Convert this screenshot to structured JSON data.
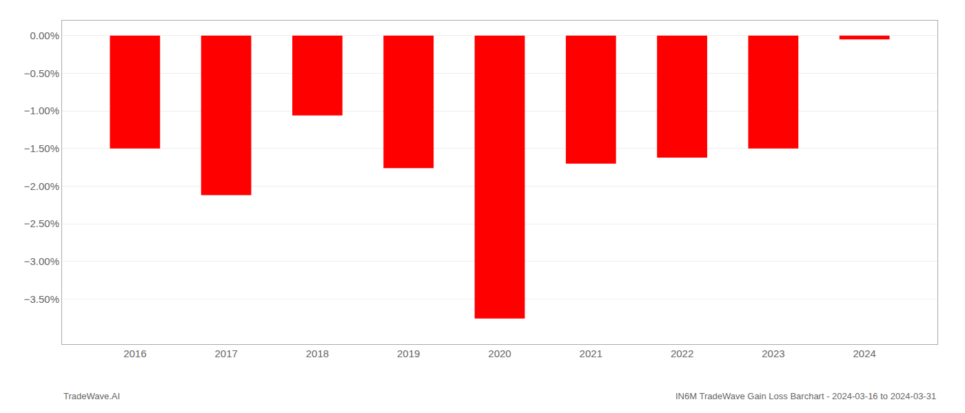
{
  "chart_data": {
    "type": "bar",
    "title": "IN6M TradeWave Gain Loss Barchart - 2024-03-16 to 2024-03-31",
    "annotations": [
      "TradeWave.AI"
    ],
    "x": [
      2016,
      2017,
      2018,
      2019,
      2020,
      2021,
      2022,
      2023,
      2024
    ],
    "values": [
      -1.5,
      -2.12,
      -1.06,
      -1.76,
      -3.76,
      -1.7,
      -1.62,
      -1.5,
      -0.05
    ],
    "color": "#ff0000",
    "xlim": [
      2015.2,
      2024.8
    ],
    "xticks": [
      2016,
      2017,
      2018,
      2019,
      2020,
      2021,
      2022,
      2023,
      2024
    ],
    "ylim": [
      -4.1,
      0.2
    ],
    "yticks": [
      {
        "value": 0.0,
        "label": "0.00%"
      },
      {
        "value": -0.5,
        "label": "−0.50%"
      },
      {
        "value": -1.0,
        "label": "−1.00%"
      },
      {
        "value": -1.5,
        "label": "−1.50%"
      },
      {
        "value": -2.0,
        "label": "−2.00%"
      },
      {
        "value": -2.5,
        "label": "−2.50%"
      },
      {
        "value": -3.0,
        "label": "−3.00%"
      },
      {
        "value": -3.5,
        "label": "−3.50%"
      }
    ],
    "grid": true
  }
}
